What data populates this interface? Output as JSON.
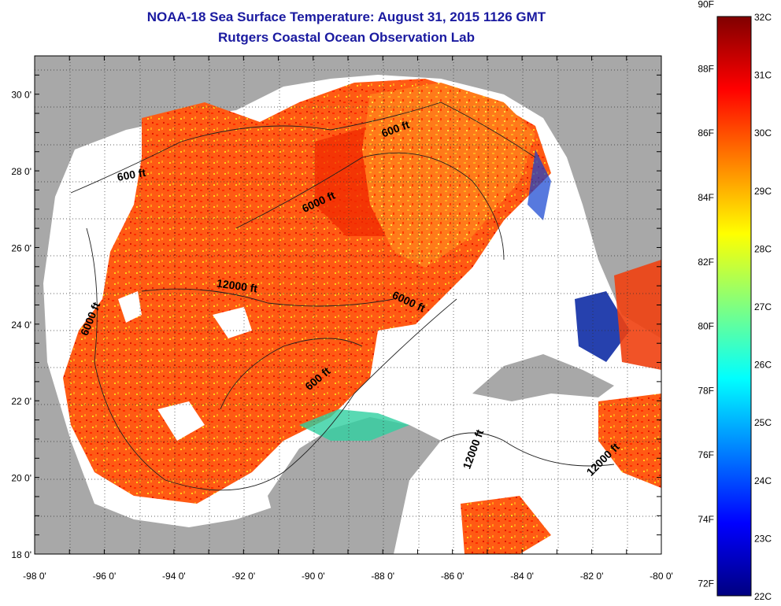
{
  "title": "NOAA-18 Sea Surface Temperature:  August 31, 2015 1126 GMT",
  "subtitle": "Rutgers Coastal Ocean Observation Lab",
  "map": {
    "lon_range": [
      -98,
      -80
    ],
    "lat_range": [
      18,
      31
    ],
    "lon_ticks": [
      "-98 0'",
      "-96 0'",
      "-94 0'",
      "-92 0'",
      "-90 0'",
      "-88 0'",
      "-86 0'",
      "-84 0'",
      "-82 0'",
      "-80 0'"
    ],
    "lat_ticks": [
      "18 0'",
      "20 0'",
      "22 0'",
      "24 0'",
      "26 0'",
      "28 0'",
      "30 0'"
    ],
    "land_color": "#a8a8a8",
    "cloud_color": "#ffffff",
    "contour_labels": [
      {
        "text": "600 ft",
        "lon": -87.6,
        "lat": 29.0,
        "angle": -20
      },
      {
        "text": "600 ft",
        "lon": -95.2,
        "lat": 27.8,
        "angle": -10
      },
      {
        "text": "6000 ft",
        "lon": -89.8,
        "lat": 27.1,
        "angle": -25
      },
      {
        "text": "12000 ft",
        "lon": -92.2,
        "lat": 24.9,
        "angle": 8
      },
      {
        "text": "6000 ft",
        "lon": -96.3,
        "lat": 24.1,
        "angle": -68
      },
      {
        "text": "6000 ft",
        "lon": -87.3,
        "lat": 24.5,
        "angle": 25
      },
      {
        "text": "600 ft",
        "lon": -89.8,
        "lat": 22.5,
        "angle": -40
      },
      {
        "text": "12000 ft",
        "lon": -85.3,
        "lat": 20.7,
        "angle": -70
      },
      {
        "text": "12000 ft",
        "lon": -81.6,
        "lat": 20.4,
        "angle": -45
      }
    ]
  },
  "colorbar": {
    "f_labels": [
      "90F",
      "88F",
      "86F",
      "84F",
      "82F",
      "80F",
      "78F",
      "76F",
      "74F",
      "72F"
    ],
    "c_labels": [
      "32C",
      "31C",
      "30C",
      "29C",
      "28C",
      "27C",
      "26C",
      "25C",
      "24C",
      "23C",
      "22C"
    ],
    "colors": [
      "#800000",
      "#ff0000",
      "#ff8000",
      "#ffff00",
      "#80ff80",
      "#00ffff",
      "#0080ff",
      "#0000ff",
      "#000080"
    ]
  }
}
